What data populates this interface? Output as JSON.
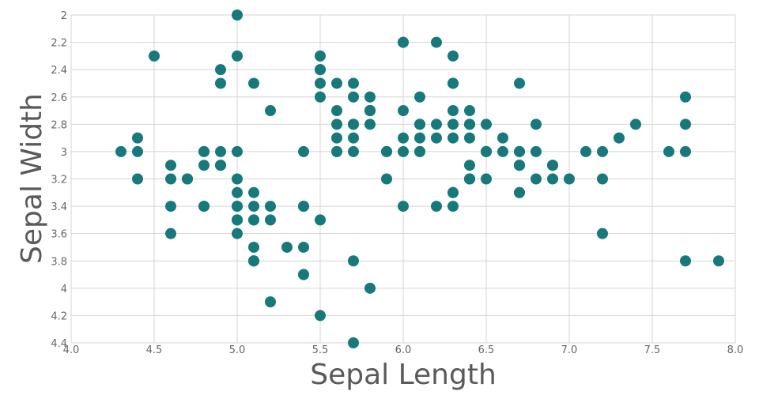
{
  "chart_data": {
    "type": "scatter",
    "xlabel": "Sepal Length",
    "ylabel": "Sepal Width",
    "xlim": [
      4.0,
      8.0
    ],
    "ylim": [
      2.0,
      4.4
    ],
    "y_reversed": true,
    "grid": true,
    "point_color": "#17797b",
    "xticks": [
      "4.0",
      "4.5",
      "5.0",
      "5.5",
      "6.0",
      "6.5",
      "7.0",
      "7.5",
      "8.0"
    ],
    "yticks": [
      "2",
      "2.2",
      "2.4",
      "2.6",
      "2.8",
      "3",
      "3.2",
      "3.4",
      "3.6",
      "3.8",
      "4",
      "4.2",
      "4.4"
    ],
    "x": [
      5.1,
      4.9,
      4.7,
      4.6,
      5.0,
      5.4,
      4.6,
      5.0,
      4.4,
      4.9,
      5.4,
      4.8,
      4.8,
      4.3,
      5.8,
      5.7,
      5.4,
      5.1,
      5.7,
      5.1,
      5.4,
      5.1,
      4.6,
      5.1,
      4.8,
      5.0,
      5.0,
      5.2,
      5.2,
      4.7,
      4.8,
      5.4,
      5.2,
      5.5,
      4.9,
      5.0,
      5.5,
      4.9,
      4.4,
      5.1,
      5.0,
      4.5,
      4.4,
      5.0,
      5.1,
      4.8,
      5.1,
      4.6,
      5.3,
      5.0,
      7.0,
      6.4,
      6.9,
      5.5,
      6.5,
      5.7,
      6.3,
      4.9,
      6.6,
      5.2,
      5.0,
      5.9,
      6.0,
      6.1,
      5.6,
      6.7,
      5.6,
      5.8,
      6.2,
      5.6,
      5.9,
      6.1,
      6.3,
      6.1,
      6.4,
      6.6,
      6.8,
      6.7,
      6.0,
      5.7,
      5.5,
      5.5,
      5.8,
      6.0,
      5.4,
      6.0,
      6.7,
      6.3,
      5.6,
      5.5,
      5.5,
      6.1,
      5.8,
      5.0,
      5.6,
      5.7,
      5.7,
      6.2,
      5.1,
      5.7,
      6.3,
      5.8,
      7.1,
      6.3,
      6.5,
      7.6,
      4.9,
      7.3,
      6.7,
      7.2,
      6.5,
      6.4,
      6.8,
      5.7,
      5.8,
      6.4,
      6.5,
      7.7,
      7.7,
      6.0,
      6.9,
      5.6,
      7.7,
      6.3,
      6.7,
      7.2,
      6.2,
      6.1,
      6.4,
      7.2,
      7.4,
      7.9,
      6.4,
      6.3,
      6.1,
      7.7,
      6.3,
      6.4,
      6.0,
      6.9,
      6.7,
      6.9,
      5.8,
      6.8,
      6.7,
      6.7,
      6.3,
      6.5,
      6.2,
      5.9
    ],
    "y": [
      3.5,
      3.0,
      3.2,
      3.1,
      3.6,
      3.9,
      3.4,
      3.4,
      2.9,
      3.1,
      3.7,
      3.4,
      3.0,
      3.0,
      4.0,
      4.4,
      3.9,
      3.5,
      3.8,
      3.8,
      3.4,
      3.7,
      3.6,
      3.3,
      3.4,
      3.0,
      3.4,
      3.5,
      3.4,
      3.2,
      3.1,
      3.4,
      4.1,
      4.2,
      3.1,
      3.2,
      3.5,
      3.1,
      3.0,
      3.4,
      3.5,
      2.3,
      3.2,
      3.5,
      3.8,
      3.0,
      3.8,
      3.2,
      3.7,
      3.3,
      3.2,
      3.2,
      3.1,
      2.3,
      2.8,
      2.8,
      3.3,
      2.4,
      2.9,
      2.7,
      2.0,
      3.0,
      2.2,
      2.9,
      2.9,
      3.1,
      3.0,
      2.7,
      2.2,
      2.5,
      3.2,
      2.8,
      2.5,
      2.8,
      2.9,
      3.0,
      2.8,
      3.0,
      2.9,
      2.6,
      2.4,
      2.4,
      2.7,
      2.7,
      3.0,
      3.4,
      3.1,
      2.3,
      3.0,
      2.5,
      2.6,
      3.0,
      2.6,
      2.3,
      2.7,
      3.0,
      2.9,
      2.9,
      2.5,
      2.8,
      3.3,
      2.7,
      3.0,
      2.9,
      3.0,
      3.0,
      2.5,
      2.9,
      2.5,
      3.6,
      3.2,
      2.7,
      3.0,
      2.5,
      2.8,
      3.2,
      3.0,
      3.8,
      2.6,
      2.2,
      3.2,
      2.8,
      2.8,
      2.7,
      3.3,
      3.2,
      2.8,
      3.0,
      2.8,
      3.0,
      2.8,
      3.8,
      2.8,
      2.8,
      2.6,
      3.0,
      3.4,
      3.1,
      3.0,
      3.1,
      3.1,
      3.1,
      2.7,
      3.2,
      3.3,
      3.0,
      2.5,
      3.0,
      3.4,
      3.0
    ]
  }
}
